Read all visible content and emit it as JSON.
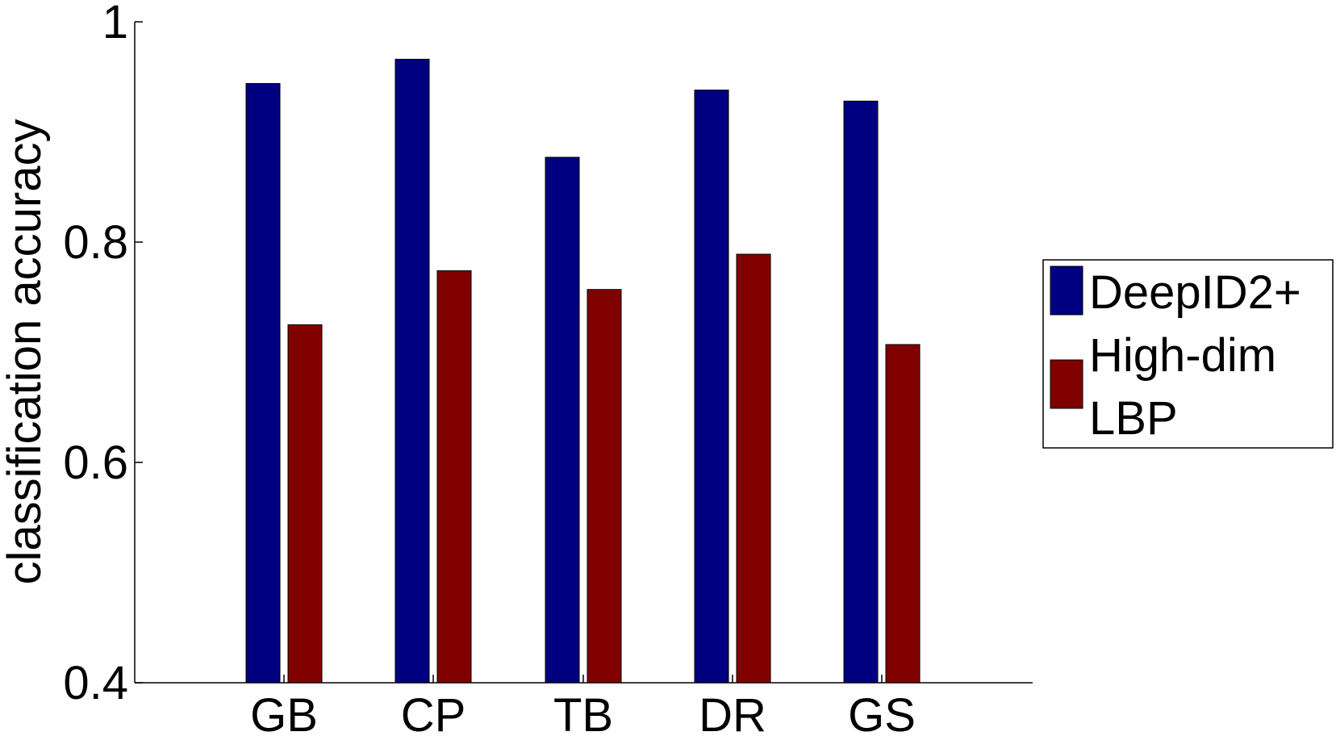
{
  "chart_data": {
    "type": "bar",
    "categories": [
      "GB",
      "CP",
      "TB",
      "DR",
      "GS"
    ],
    "series": [
      {
        "name": "DeepID2+",
        "values": [
          0.944,
          0.966,
          0.877,
          0.938,
          0.928
        ],
        "color": "#000080"
      },
      {
        "name": "High-dim LBP",
        "name_lines": [
          "High-dim",
          "LBP"
        ],
        "values": [
          0.725,
          0.774,
          0.757,
          0.789,
          0.707
        ],
        "color": "#800000"
      }
    ],
    "ylabel": "classification accuracy",
    "xlabel": "",
    "ylim": [
      0.4,
      1.0
    ],
    "yticks": [
      "0.4",
      "0.6",
      "0.8",
      "1"
    ],
    "grid": false,
    "legend_position": "right"
  }
}
